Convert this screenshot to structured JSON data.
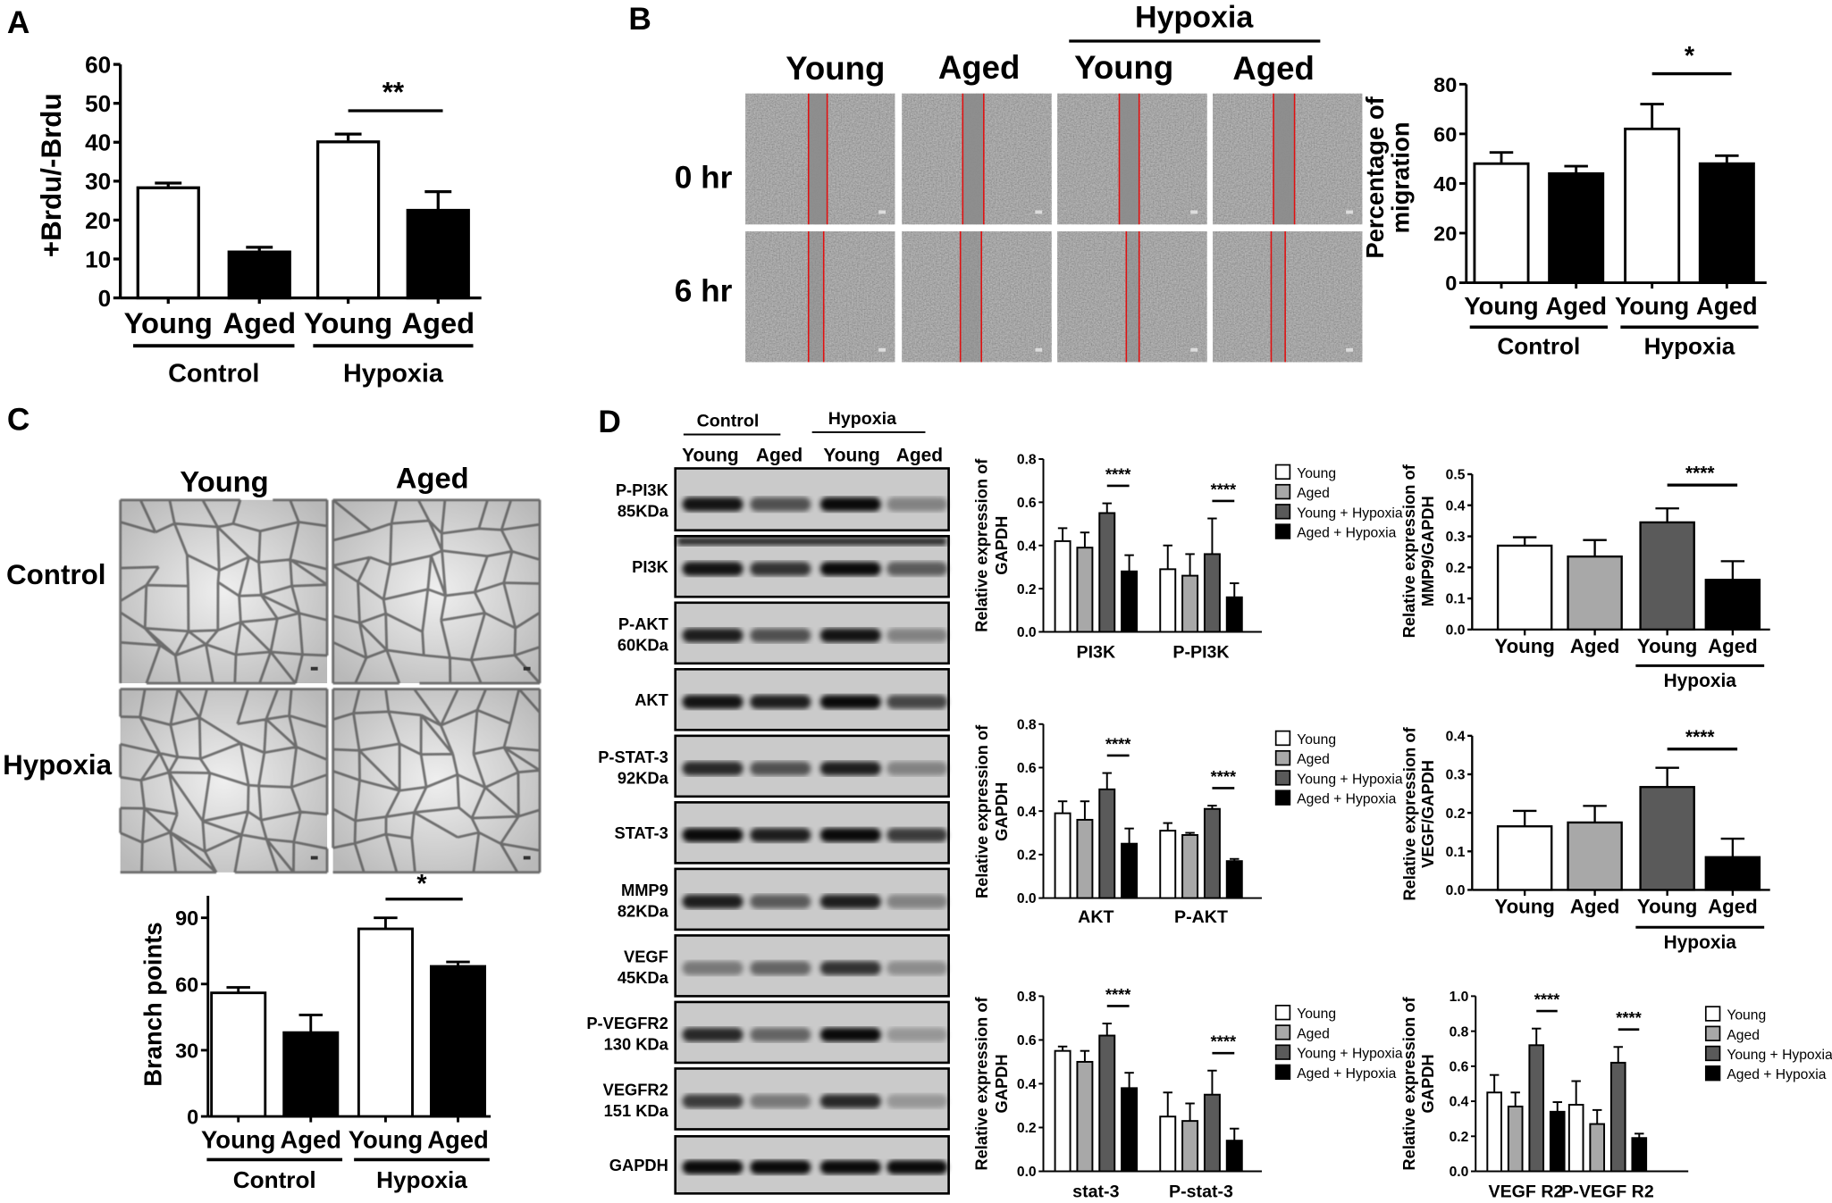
{
  "panel_labels": [
    "A",
    "B",
    "C",
    "D"
  ],
  "panel_b": {
    "group_label": "Hypoxia",
    "columns": [
      "Young",
      "Aged",
      "Young",
      "Aged"
    ],
    "rows": [
      "0 hr",
      "6 hr"
    ]
  },
  "panel_c": {
    "columns": [
      "Young",
      "Aged"
    ],
    "rows": [
      "Control",
      "Hypoxia"
    ]
  },
  "panel_d_blot": {
    "groups": [
      "Control",
      "Hypoxia"
    ],
    "lanes": [
      "Young",
      "Aged",
      "Young",
      "Aged"
    ],
    "rows": [
      {
        "label": "P-PI3K",
        "sublabel": "85KDa",
        "band_intensity": [
          0.9,
          0.6,
          0.95,
          0.35
        ]
      },
      {
        "label": "PI3K",
        "sublabel": "",
        "band_intensity": [
          0.9,
          0.75,
          0.95,
          0.55
        ]
      },
      {
        "label": "P-AKT",
        "sublabel": "60KDa",
        "band_intensity": [
          0.85,
          0.6,
          0.9,
          0.35
        ]
      },
      {
        "label": "AKT",
        "sublabel": "",
        "band_intensity": [
          0.9,
          0.85,
          0.95,
          0.65
        ]
      },
      {
        "label": "P-STAT-3",
        "sublabel": "92KDa",
        "band_intensity": [
          0.8,
          0.6,
          0.85,
          0.35
        ]
      },
      {
        "label": "STAT-3",
        "sublabel": "",
        "band_intensity": [
          0.95,
          0.85,
          0.95,
          0.7
        ]
      },
      {
        "label": "MMP9",
        "sublabel": "82KDa",
        "band_intensity": [
          0.85,
          0.55,
          0.85,
          0.35
        ]
      },
      {
        "label": "VEGF",
        "sublabel": "45KDa",
        "band_intensity": [
          0.4,
          0.5,
          0.75,
          0.3
        ]
      },
      {
        "label": "P-VEGFR2",
        "sublabel": "130 KDa",
        "band_intensity": [
          0.8,
          0.5,
          0.95,
          0.25
        ]
      },
      {
        "label": "VEGFR2",
        "sublabel": "151 KDa",
        "band_intensity": [
          0.7,
          0.4,
          0.8,
          0.25
        ]
      },
      {
        "label": "GAPDH",
        "sublabel": "",
        "band_intensity": [
          0.95,
          0.95,
          0.95,
          0.95
        ]
      }
    ]
  },
  "chart_data": [
    {
      "id": "A",
      "type": "bar",
      "title": "",
      "ylabel": [
        "+Brdu/-Brdu"
      ],
      "xlabel": "",
      "ylim": [
        0,
        60
      ],
      "yticks": [
        "0",
        "10",
        "20",
        "30",
        "40",
        "50",
        "60"
      ],
      "categories": [
        "Young",
        "Aged",
        "Young",
        "Aged"
      ],
      "groups": [
        {
          "label": "Control",
          "members": [
            0,
            1
          ]
        },
        {
          "label": "Hypoxia",
          "members": [
            2,
            3
          ]
        }
      ],
      "values": [
        28.3,
        11.8,
        40.1,
        22.5
      ],
      "errors": [
        1.2,
        1.2,
        2.0,
        4.8
      ],
      "colors": [
        "#ffffff",
        "#000000",
        "#ffffff",
        "#000000"
      ],
      "significance": [
        {
          "bars": [
            2,
            3
          ],
          "label": "**"
        }
      ]
    },
    {
      "id": "B",
      "type": "bar",
      "title": "",
      "ylabel": [
        "Percentage of",
        "migration"
      ],
      "xlabel": "",
      "ylim": [
        0,
        80
      ],
      "yticks": [
        "0",
        "20",
        "40",
        "60",
        "80"
      ],
      "categories": [
        "Young",
        "Aged",
        "Young",
        "Aged"
      ],
      "groups": [
        {
          "label": "Control",
          "members": [
            0,
            1
          ]
        },
        {
          "label": "Hypoxia",
          "members": [
            2,
            3
          ]
        }
      ],
      "values": [
        48,
        44,
        62,
        48
      ],
      "errors": [
        4.5,
        3,
        10,
        3.2
      ],
      "colors": [
        "#ffffff",
        "#000000",
        "#ffffff",
        "#000000"
      ],
      "significance": [
        {
          "bars": [
            2,
            3
          ],
          "label": "*"
        }
      ]
    },
    {
      "id": "C",
      "type": "bar",
      "title": "",
      "ylabel": [
        "Branch points"
      ],
      "xlabel": "",
      "ylim": [
        0,
        100
      ],
      "yticks": [
        "0",
        "30",
        "60",
        "90"
      ],
      "categories": [
        "Young",
        "Aged",
        "Young",
        "Aged"
      ],
      "groups": [
        {
          "label": "Control",
          "members": [
            0,
            1
          ]
        },
        {
          "label": "Hypoxia",
          "members": [
            2,
            3
          ]
        }
      ],
      "values": [
        56,
        38,
        85,
        68
      ],
      "errors": [
        2.5,
        8,
        5,
        2
      ],
      "colors": [
        "#ffffff",
        "#000000",
        "#ffffff",
        "#000000"
      ],
      "significance": [
        {
          "bars": [
            2,
            3
          ],
          "label": "*"
        }
      ]
    },
    {
      "id": "D-PI3K",
      "type": "bar",
      "title": "",
      "ylabel": [
        "Relative expression of",
        "GAPDH"
      ],
      "xlabel": "",
      "ylim": [
        0,
        0.8
      ],
      "yticks": [
        "0.0",
        "0.2",
        "0.4",
        "0.6",
        "0.8"
      ],
      "categories": [
        "PI3K",
        "P-PI3K"
      ],
      "series": [
        {
          "name": "Young",
          "values": [
            0.42,
            0.29
          ],
          "errors": [
            0.06,
            0.11
          ]
        },
        {
          "name": "Aged",
          "values": [
            0.39,
            0.26
          ],
          "errors": [
            0.07,
            0.1
          ]
        },
        {
          "name": "Young + Hypoxia",
          "values": [
            0.55,
            0.36
          ],
          "errors": [
            0.045,
            0.165
          ]
        },
        {
          "name": "Aged + Hypoxia",
          "values": [
            0.28,
            0.16
          ],
          "errors": [
            0.075,
            0.065
          ]
        }
      ],
      "colors": [
        "#ffffff",
        "#a8a8a8",
        "#5a5a5a",
        "#000000"
      ],
      "legend": "right",
      "significance": [
        {
          "category": 0,
          "bars": [
            2,
            3
          ],
          "label": "****"
        },
        {
          "category": 1,
          "bars": [
            2,
            3
          ],
          "label": "****"
        }
      ]
    },
    {
      "id": "D-AKT",
      "type": "bar",
      "title": "",
      "ylabel": [
        "Relative expression of",
        "GAPDH"
      ],
      "xlabel": "",
      "ylim": [
        0,
        0.8
      ],
      "yticks": [
        "0.0",
        "0.2",
        "0.4",
        "0.6",
        "0.8"
      ],
      "categories": [
        "AKT",
        "P-AKT"
      ],
      "series": [
        {
          "name": "Young",
          "values": [
            0.39,
            0.31
          ],
          "errors": [
            0.055,
            0.035
          ]
        },
        {
          "name": "Aged",
          "values": [
            0.36,
            0.29
          ],
          "errors": [
            0.085,
            0.01
          ]
        },
        {
          "name": "Young + Hypoxia",
          "values": [
            0.5,
            0.41
          ],
          "errors": [
            0.075,
            0.015
          ]
        },
        {
          "name": "Aged + Hypoxia",
          "values": [
            0.25,
            0.17
          ],
          "errors": [
            0.07,
            0.01
          ]
        }
      ],
      "colors": [
        "#ffffff",
        "#a8a8a8",
        "#5a5a5a",
        "#000000"
      ],
      "legend": "right",
      "significance": [
        {
          "category": 0,
          "bars": [
            2,
            3
          ],
          "label": "****"
        },
        {
          "category": 1,
          "bars": [
            2,
            3
          ],
          "label": "****"
        }
      ]
    },
    {
      "id": "D-STAT3",
      "type": "bar",
      "title": "",
      "ylabel": [
        "Relative expression of",
        "GAPDH"
      ],
      "xlabel": "",
      "ylim": [
        0,
        0.8
      ],
      "yticks": [
        "0.0",
        "0.2",
        "0.4",
        "0.6",
        "0.8"
      ],
      "categories": [
        "stat-3",
        "P-stat-3"
      ],
      "series": [
        {
          "name": "Young",
          "values": [
            0.55,
            0.25
          ],
          "errors": [
            0.02,
            0.11
          ]
        },
        {
          "name": "Aged",
          "values": [
            0.5,
            0.23
          ],
          "errors": [
            0.05,
            0.08
          ]
        },
        {
          "name": "Young + Hypoxia",
          "values": [
            0.62,
            0.35
          ],
          "errors": [
            0.055,
            0.11
          ]
        },
        {
          "name": "Aged + Hypoxia",
          "values": [
            0.38,
            0.14
          ],
          "errors": [
            0.07,
            0.055
          ]
        }
      ],
      "colors": [
        "#ffffff",
        "#a8a8a8",
        "#5a5a5a",
        "#000000"
      ],
      "legend": "right",
      "significance": [
        {
          "category": 0,
          "bars": [
            2,
            3
          ],
          "label": "****"
        },
        {
          "category": 1,
          "bars": [
            2,
            3
          ],
          "label": "****"
        }
      ]
    },
    {
      "id": "D-MMP9",
      "type": "bar",
      "title": "",
      "ylabel": [
        "Relative expression of",
        "MMP9/GAPDH"
      ],
      "xlabel": "",
      "ylim": [
        0,
        0.5
      ],
      "yticks": [
        "0.0",
        "0.1",
        "0.2",
        "0.3",
        "0.4",
        "0.5"
      ],
      "categories": [
        "Young",
        "Aged",
        "Young",
        "Aged"
      ],
      "groups": [
        {
          "label": "Hypoxia",
          "members": [
            2,
            3
          ]
        }
      ],
      "values": [
        0.27,
        0.235,
        0.345,
        0.16
      ],
      "errors": [
        0.027,
        0.053,
        0.045,
        0.06
      ],
      "colors": [
        "#ffffff",
        "#a8a8a8",
        "#5a5a5a",
        "#000000"
      ],
      "significance": [
        {
          "bars": [
            2,
            3
          ],
          "label": "****"
        }
      ]
    },
    {
      "id": "D-VEGF",
      "type": "bar",
      "title": "",
      "ylabel": [
        "Relative expression of",
        "VEGF/GAPDH"
      ],
      "xlabel": "",
      "ylim": [
        0,
        0.4
      ],
      "yticks": [
        "0.0",
        "0.1",
        "0.2",
        "0.3",
        "0.4"
      ],
      "categories": [
        "Young",
        "Aged",
        "Young",
        "Aged"
      ],
      "groups": [
        {
          "label": "Hypoxia",
          "members": [
            2,
            3
          ]
        }
      ],
      "values": [
        0.165,
        0.175,
        0.267,
        0.085
      ],
      "errors": [
        0.04,
        0.043,
        0.05,
        0.048
      ],
      "colors": [
        "#ffffff",
        "#a8a8a8",
        "#5a5a5a",
        "#000000"
      ],
      "significance": [
        {
          "bars": [
            2,
            3
          ],
          "label": "****"
        }
      ]
    },
    {
      "id": "D-VEGFR2",
      "type": "bar",
      "title": "",
      "ylabel": [
        "Relative expression of",
        "GAPDH"
      ],
      "xlabel": "",
      "ylim": [
        0,
        1.0
      ],
      "yticks": [
        "0.0",
        "0.2",
        "0.4",
        "0.6",
        "0.8",
        "1.0"
      ],
      "categories": [
        "VEGF R2",
        "P-VEGF R2"
      ],
      "series": [
        {
          "name": "Young",
          "values": [
            0.45,
            0.38
          ],
          "errors": [
            0.1,
            0.135
          ]
        },
        {
          "name": "Aged",
          "values": [
            0.37,
            0.27
          ],
          "errors": [
            0.08,
            0.08
          ]
        },
        {
          "name": "Young + Hypoxia",
          "values": [
            0.72,
            0.62
          ],
          "errors": [
            0.095,
            0.09
          ]
        },
        {
          "name": "Aged + Hypoxia",
          "values": [
            0.34,
            0.19
          ],
          "errors": [
            0.055,
            0.025
          ]
        }
      ],
      "colors": [
        "#ffffff",
        "#a8a8a8",
        "#5a5a5a",
        "#000000"
      ],
      "legend": "right",
      "significance": [
        {
          "category": 0,
          "bars": [
            2,
            3
          ],
          "label": "****"
        },
        {
          "category": 1,
          "bars": [
            2,
            3
          ],
          "label": "****"
        }
      ]
    }
  ]
}
